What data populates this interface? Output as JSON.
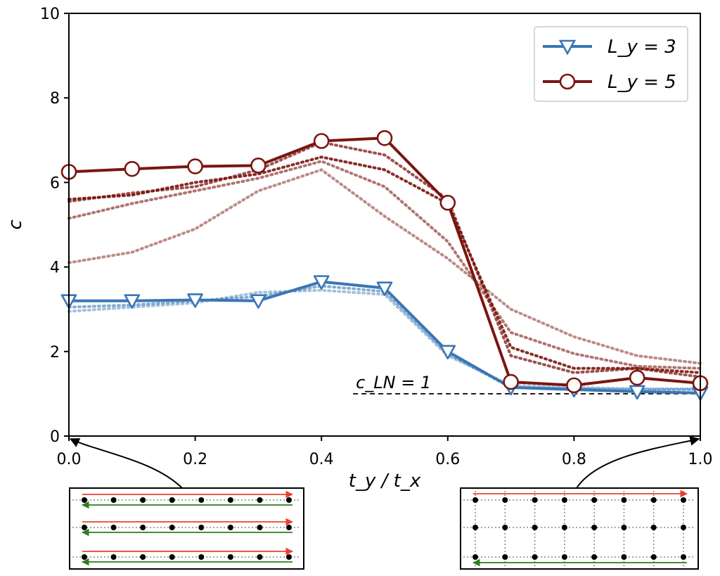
{
  "chart_data": {
    "type": "line",
    "xlabel": "t_y / t_x",
    "ylabel": "c",
    "xlim": [
      0.0,
      1.0
    ],
    "ylim": [
      0,
      10
    ],
    "x_ticks": [
      "0.0",
      "0.2",
      "0.4",
      "0.6",
      "0.8",
      "1.0"
    ],
    "y_ticks": [
      "0",
      "2",
      "4",
      "6",
      "8",
      "10"
    ],
    "x": [
      0.0,
      0.1,
      0.2,
      0.3,
      0.4,
      0.5,
      0.6,
      0.7,
      0.8,
      0.9,
      1.0
    ],
    "series": [
      {
        "name": "L_y = 3",
        "color": "#3a76b4",
        "marker": "triangle-down",
        "values": [
          3.2,
          3.2,
          3.22,
          3.2,
          3.65,
          3.5,
          2.0,
          1.15,
          1.1,
          1.05,
          1.02
        ]
      },
      {
        "name": "L_y = 5",
        "color": "#7b1510",
        "marker": "circle",
        "values": [
          6.25,
          6.32,
          6.38,
          6.4,
          6.98,
          7.05,
          5.52,
          1.28,
          1.2,
          1.38,
          1.25
        ]
      }
    ],
    "dotted_series": [
      {
        "color": "#7b1510",
        "opacity": 0.9,
        "values": [
          5.6,
          5.7,
          6.0,
          6.2,
          6.6,
          6.3,
          5.5,
          2.1,
          1.6,
          1.6,
          1.5
        ]
      },
      {
        "color": "#7b1510",
        "opacity": 0.75,
        "values": [
          5.55,
          5.75,
          5.9,
          6.3,
          6.95,
          6.65,
          5.6,
          1.9,
          1.5,
          1.6,
          1.4
        ]
      },
      {
        "color": "#7b1510",
        "opacity": 0.6,
        "values": [
          5.15,
          5.5,
          5.8,
          6.1,
          6.5,
          5.9,
          4.6,
          2.45,
          1.95,
          1.65,
          1.6
        ]
      },
      {
        "color": "#7b1510",
        "opacity": 0.5,
        "values": [
          4.1,
          4.35,
          4.9,
          5.8,
          6.3,
          5.2,
          4.2,
          3.0,
          2.35,
          1.9,
          1.72
        ]
      },
      {
        "color": "#3a76b4",
        "opacity": 0.6,
        "values": [
          3.05,
          3.1,
          3.2,
          3.3,
          3.55,
          3.42,
          1.95,
          1.15,
          1.12,
          1.1,
          1.1
        ]
      },
      {
        "color": "#3a76b4",
        "opacity": 0.45,
        "values": [
          2.95,
          3.05,
          3.15,
          3.4,
          3.45,
          3.35,
          1.9,
          1.2,
          1.15,
          1.12,
          1.12
        ]
      }
    ],
    "reference_line": {
      "y": 1,
      "x_start": 0.45,
      "x_end": 1.0,
      "label": "c_LN = 1"
    },
    "legend": {
      "position": "top-right",
      "entries": [
        "L_y = 3",
        "L_y = 5"
      ]
    },
    "insets": [
      {
        "anchor_x": 0.0,
        "rows": 3,
        "cols": 8,
        "vertical_bonds": false
      },
      {
        "anchor_x": 1.0,
        "rows": 3,
        "cols": 8,
        "vertical_bonds": true
      }
    ],
    "grid": false
  }
}
